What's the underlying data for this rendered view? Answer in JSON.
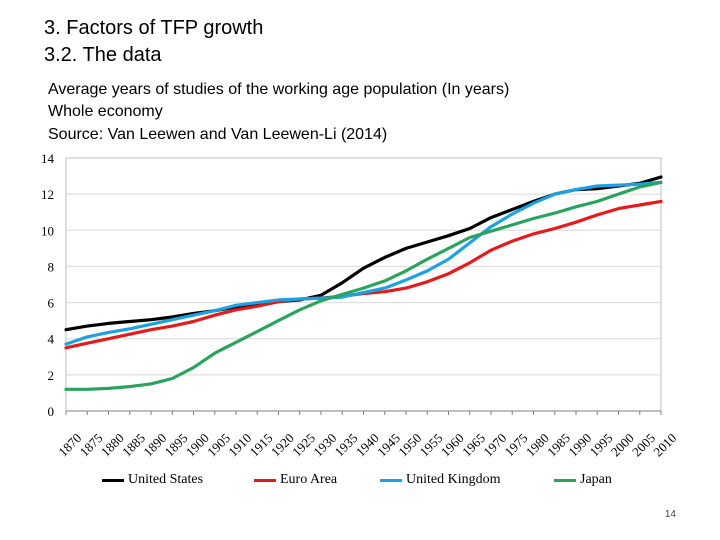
{
  "slide": {
    "title_line1": "3.    Factors of TFP growth",
    "title_line2": "3.2. The data",
    "subtitle_line1": "Average years of studies of the working age population (In years)",
    "subtitle_line2": "Whole economy",
    "subtitle_line3": "Source: Van Leewen and Van Leewen-Li (2014)",
    "page_number": "14"
  },
  "chart_data": {
    "type": "line",
    "title": "Average years of studies of the working age population (In years)",
    "xlabel": "",
    "ylabel": "",
    "ylim": [
      0,
      14
    ],
    "yticks": [
      0,
      2,
      4,
      6,
      8,
      10,
      12,
      14
    ],
    "x": [
      1870,
      1875,
      1880,
      1885,
      1890,
      1895,
      1900,
      1905,
      1910,
      1915,
      1920,
      1925,
      1930,
      1935,
      1940,
      1945,
      1950,
      1955,
      1960,
      1965,
      1970,
      1975,
      1980,
      1985,
      1990,
      1995,
      2000,
      2005,
      2010
    ],
    "xtick_labels": [
      "1870",
      "1875",
      "1880",
      "1885",
      "1890",
      "1895",
      "1900",
      "1905",
      "1910",
      "1915",
      "1920",
      "1925",
      "1930",
      "1935",
      "1940",
      "1945",
      "1950",
      "1955",
      "1960",
      "1965",
      "1970",
      "1975",
      "1980",
      "1985",
      "1990",
      "1995",
      "2000",
      "2005",
      "2010"
    ],
    "legend_position": "bottom",
    "series": [
      {
        "name": "United States",
        "color": "#000000",
        "values": [
          4.5,
          4.7,
          4.85,
          4.95,
          5.05,
          5.2,
          5.4,
          5.55,
          5.75,
          5.9,
          6.05,
          6.15,
          6.4,
          7.1,
          7.9,
          8.5,
          9.0,
          9.35,
          9.7,
          10.1,
          10.7,
          11.15,
          11.6,
          12.0,
          12.25,
          12.3,
          12.45,
          12.6,
          12.95
        ]
      },
      {
        "name": "Euro Area",
        "color": "#e41a1c",
        "values": [
          3.5,
          3.75,
          4.0,
          4.25,
          4.5,
          4.7,
          4.95,
          5.3,
          5.6,
          5.8,
          6.05,
          6.2,
          6.25,
          6.35,
          6.5,
          6.6,
          6.8,
          7.15,
          7.6,
          8.2,
          8.9,
          9.4,
          9.8,
          10.1,
          10.45,
          10.85,
          11.2,
          11.4,
          11.6
        ]
      },
      {
        "name": "United Kingdom",
        "color": "#1da1e1",
        "values": [
          3.7,
          4.1,
          4.35,
          4.55,
          4.8,
          5.05,
          5.3,
          5.55,
          5.85,
          6.0,
          6.15,
          6.2,
          6.25,
          6.3,
          6.55,
          6.8,
          7.25,
          7.75,
          8.4,
          9.3,
          10.2,
          10.9,
          11.5,
          12.0,
          12.25,
          12.45,
          12.5,
          12.55,
          12.65
        ]
      },
      {
        "name": "Japan",
        "color": "#2ca25f",
        "values": [
          1.2,
          1.2,
          1.25,
          1.35,
          1.5,
          1.8,
          2.4,
          3.2,
          3.8,
          4.4,
          5.0,
          5.6,
          6.1,
          6.45,
          6.8,
          7.2,
          7.75,
          8.4,
          9.0,
          9.6,
          9.95,
          10.3,
          10.65,
          10.95,
          11.3,
          11.6,
          12.0,
          12.4,
          12.65
        ]
      }
    ]
  }
}
